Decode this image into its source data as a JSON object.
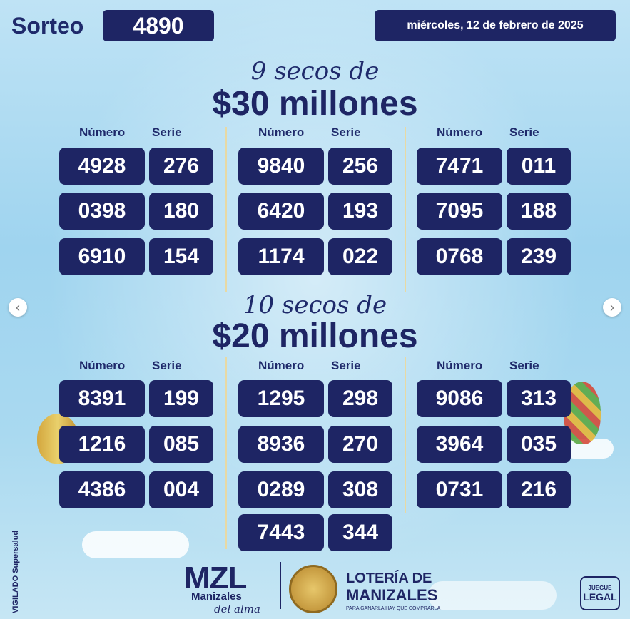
{
  "header": {
    "sorteo_label": "Sorteo",
    "sorteo_number": "4890",
    "date": "miércoles, 12 de febrero de 2025"
  },
  "section1": {
    "script": "9 secos de",
    "amount": "$30 millones",
    "col_numero": "Número",
    "col_serie": "Serie",
    "groups": [
      [
        {
          "n": "4928",
          "s": "276"
        },
        {
          "n": "0398",
          "s": "180"
        },
        {
          "n": "6910",
          "s": "154"
        }
      ],
      [
        {
          "n": "9840",
          "s": "256"
        },
        {
          "n": "6420",
          "s": "193"
        },
        {
          "n": "1174",
          "s": "022"
        }
      ],
      [
        {
          "n": "7471",
          "s": "011"
        },
        {
          "n": "7095",
          "s": "188"
        },
        {
          "n": "0768",
          "s": "239"
        }
      ]
    ]
  },
  "section2": {
    "script": "10 secos de",
    "amount": "$20 millones",
    "col_numero": "Número",
    "col_serie": "Serie",
    "groups": [
      [
        {
          "n": "8391",
          "s": "199"
        },
        {
          "n": "1216",
          "s": "085"
        },
        {
          "n": "4386",
          "s": "004"
        }
      ],
      [
        {
          "n": "1295",
          "s": "298"
        },
        {
          "n": "8936",
          "s": "270"
        },
        {
          "n": "0289",
          "s": "308"
        },
        {
          "n": "7443",
          "s": "344"
        }
      ],
      [
        {
          "n": "9086",
          "s": "313"
        },
        {
          "n": "3964",
          "s": "035"
        },
        {
          "n": "0731",
          "s": "216"
        }
      ]
    ]
  },
  "footer": {
    "mzl": "MZL",
    "mzl_sub1": "Manizales",
    "mzl_sub2": "del alma",
    "loteria_line1": "LOTERÍA DE",
    "loteria_line2": "MANIZALES",
    "loteria_tag": "PARA GANARLA HAY QUE COMPRARLA",
    "vigilado": "VIGILADO Supersalud",
    "juegue": "JUEGUE",
    "legal": "LEGAL"
  },
  "nav": {
    "prev_icon": "chevron-left-icon",
    "next_icon": "chevron-right-icon"
  }
}
